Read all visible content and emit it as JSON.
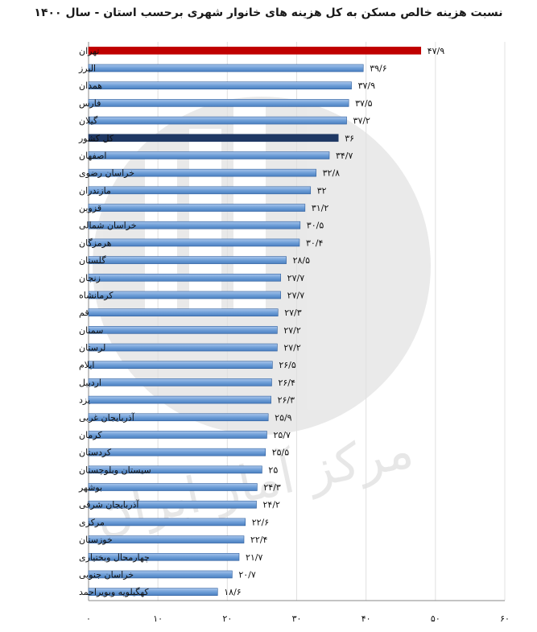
{
  "chart_data": {
    "type": "bar",
    "orientation": "horizontal",
    "title": "نسبت هزینه خالص مسکن به کل هزینه های خانوار شهری برحسب استان - سال ۱۴۰۰",
    "categories": [
      "تهران",
      "البرز",
      "همدان",
      "فارس",
      "گیلان",
      "کل کشور",
      "اصفهان",
      "خراسان رضوی",
      "مازندران",
      "قزوین",
      "خراسان شمالی",
      "هرمزگان",
      "گلستان",
      "زنجان",
      "کرمانشاه",
      "قم",
      "سمنان",
      "لرستان",
      "ایلام",
      "اردبیل",
      "یزد",
      "آذربایجان غربی",
      "کرمان",
      "کردستان",
      "سیستان وبلوچستان",
      "بوشهر",
      "آذربایجان شرقی",
      "مرکزی",
      "خوزستان",
      "چهارمحال وبختیاری",
      "خراسان جنوبی",
      "کهگیلویه وبویراحمد"
    ],
    "values": [
      47.9,
      39.6,
      37.9,
      37.5,
      37.2,
      36,
      34.7,
      32.8,
      32,
      31.2,
      30.5,
      30.4,
      28.5,
      27.7,
      27.7,
      27.3,
      27.2,
      27.2,
      26.5,
      26.4,
      26.3,
      25.9,
      25.7,
      25.5,
      25,
      24.3,
      24.2,
      22.6,
      22.4,
      21.7,
      20.7,
      18.6
    ],
    "value_labels": [
      "۴۷/۹",
      "۳۹/۶",
      "۳۷/۹",
      "۳۷/۵",
      "۳۷/۲",
      "۳۶",
      "۳۴/۷",
      "۳۲/۸",
      "۳۲",
      "۳۱/۲",
      "۳۰/۵",
      "۳۰/۴",
      "۲۸/۵",
      "۲۷/۷",
      "۲۷/۷",
      "۲۷/۳",
      "۲۷/۲",
      "۲۷/۲",
      "۲۶/۵",
      "۲۶/۴",
      "۲۶/۳",
      "۲۵/۹",
      "۲۵/۷",
      "۲۵/۵",
      "۲۵",
      "۲۴/۳",
      "۲۴/۲",
      "۲۲/۶",
      "۲۲/۴",
      "۲۱/۷",
      "۲۰/۷",
      "۱۸/۶"
    ],
    "highlight": {
      "تهران": "#c00000",
      "کل کشور": "#1f3864"
    },
    "bar_color": "#6f9fd8",
    "xlim": [
      0,
      60
    ],
    "x_ticks": [
      0,
      10,
      20,
      30,
      40,
      50,
      60
    ],
    "x_tick_labels": [
      "۰",
      "۱۰",
      "۲۰",
      "۳۰",
      "۴۰",
      "۵۰",
      "۶۰"
    ],
    "grid": true,
    "xlabel": "",
    "ylabel": ""
  },
  "watermark": {
    "text": "مرکز آمار ایران"
  }
}
